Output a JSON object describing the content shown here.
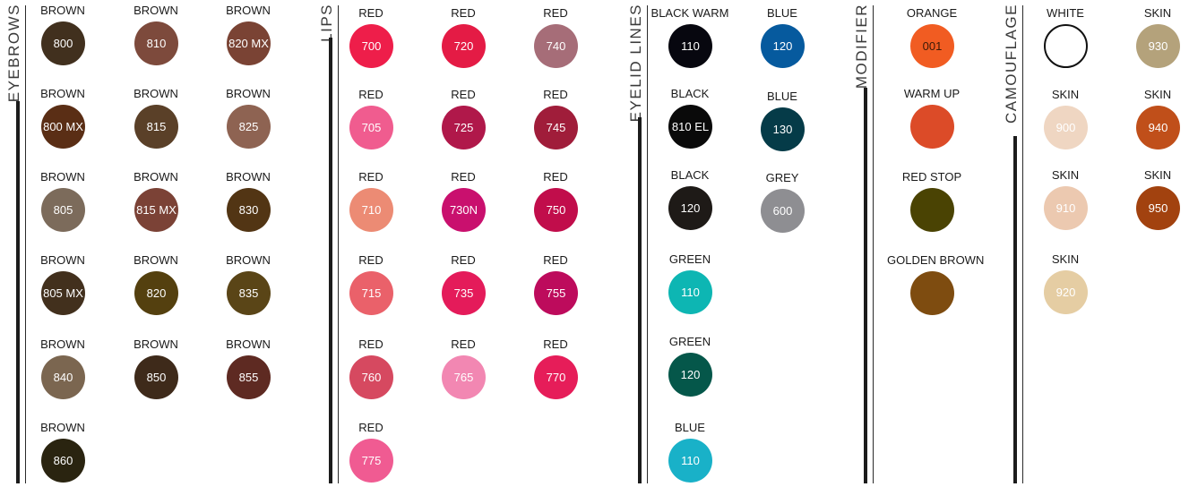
{
  "sections": [
    {
      "id": "eyebrows",
      "label": "EYEBROWS",
      "swatches": [
        {
          "name": "BROWN",
          "code": "800",
          "color": "#41301e"
        },
        {
          "name": "BROWN",
          "code": "810",
          "color": "#7d4a3c"
        },
        {
          "name": "BROWN",
          "code": "820 MX",
          "color": "#7a4334"
        },
        {
          "name": "BROWN",
          "code": "800 MX",
          "color": "#5a2e15"
        },
        {
          "name": "BROWN",
          "code": "815",
          "color": "#5a4028"
        },
        {
          "name": "BROWN",
          "code": "825",
          "color": "#8e6352"
        },
        {
          "name": "BROWN",
          "code": "805",
          "color": "#7c6b5b"
        },
        {
          "name": "BROWN",
          "code": "815 MX",
          "color": "#7b4236"
        },
        {
          "name": "BROWN",
          "code": "830",
          "color": "#523514"
        },
        {
          "name": "BROWN",
          "code": "805 MX",
          "color": "#42301d"
        },
        {
          "name": "BROWN",
          "code": "820",
          "color": "#54400f"
        },
        {
          "name": "BROWN",
          "code": "835",
          "color": "#5a4517"
        },
        {
          "name": "BROWN",
          "code": "840",
          "color": "#7b6650"
        },
        {
          "name": "BROWN",
          "code": "850",
          "color": "#3e2a1a"
        },
        {
          "name": "BROWN",
          "code": "855",
          "color": "#5e2a22"
        },
        {
          "name": "BROWN",
          "code": "860",
          "color": "#2a2410"
        }
      ]
    },
    {
      "id": "lips",
      "label": "LIPS",
      "swatches": [
        {
          "name": "RED",
          "code": "700",
          "color": "#ee1e4a"
        },
        {
          "name": "RED",
          "code": "720",
          "color": "#e41b45"
        },
        {
          "name": "RED",
          "code": "740",
          "color": "#a66d78"
        },
        {
          "name": "RED",
          "code": "705",
          "color": "#f05c8f"
        },
        {
          "name": "RED",
          "code": "725",
          "color": "#b0184a"
        },
        {
          "name": "RED",
          "code": "745",
          "color": "#a01d3a"
        },
        {
          "name": "RED",
          "code": "710",
          "color": "#ec8b74"
        },
        {
          "name": "RED",
          "code": "730N",
          "color": "#c9106e"
        },
        {
          "name": "RED",
          "code": "750",
          "color": "#c10d4b"
        },
        {
          "name": "RED",
          "code": "715",
          "color": "#ea616a"
        },
        {
          "name": "RED",
          "code": "735",
          "color": "#e41b5a"
        },
        {
          "name": "RED",
          "code": "755",
          "color": "#bd0b5c"
        },
        {
          "name": "RED",
          "code": "760",
          "color": "#d64960"
        },
        {
          "name": "RED",
          "code": "765",
          "color": "#f287b2"
        },
        {
          "name": "RED",
          "code": "770",
          "color": "#e61d59"
        },
        {
          "name": "RED",
          "code": "775",
          "color": "#f05b92"
        }
      ]
    },
    {
      "id": "eyelid",
      "label": "EYELID LINES",
      "swatches": [
        {
          "name": "BLACK WARM",
          "code": "110",
          "color": "#07070f"
        },
        {
          "name": "BLUE",
          "code": "120",
          "color": "#065a9e"
        },
        {
          "name": "BLACK",
          "code": "810 EL",
          "color": "#0a0a0a"
        },
        {
          "name": "BLUE",
          "code": "130",
          "color": "#053b48"
        },
        {
          "name": "BLACK",
          "code": "120",
          "color": "#1e1a17"
        },
        {
          "name": "GREY",
          "code": "600",
          "color": "#8e8e92"
        },
        {
          "name": "GREEN",
          "code": "110",
          "color": "#0db6b3"
        },
        {
          "name": "GREEN",
          "code": "120",
          "color": "#05574a"
        },
        {
          "name": "BLUE",
          "code": "110",
          "color": "#19b1c8"
        }
      ]
    },
    {
      "id": "modifier",
      "label": "MODIFIER",
      "swatches": [
        {
          "name": "ORANGE",
          "code": "001",
          "color": "#f15c22"
        },
        {
          "name": "WARM UP",
          "code": "",
          "color": "#dc4b28"
        },
        {
          "name": "RED STOP",
          "code": "",
          "color": "#4a4303"
        },
        {
          "name": "GOLDEN BROWN",
          "code": "",
          "color": "#7e4c10"
        }
      ]
    },
    {
      "id": "camouflage",
      "label": "CAMOUFLAGE",
      "swatches": [
        {
          "name": "WHITE",
          "code": "",
          "color": "#ffffff"
        },
        {
          "name": "SKIN",
          "code": "930",
          "color": "#b4a27b"
        },
        {
          "name": "SKIN",
          "code": "900",
          "color": "#efd6c2"
        },
        {
          "name": "SKIN",
          "code": "940",
          "color": "#c04f1a"
        },
        {
          "name": "SKIN",
          "code": "910",
          "color": "#ecc9b0"
        },
        {
          "name": "SKIN",
          "code": "950",
          "color": "#a2420f"
        },
        {
          "name": "SKIN",
          "code": "920",
          "color": "#e5cda3"
        }
      ]
    }
  ]
}
